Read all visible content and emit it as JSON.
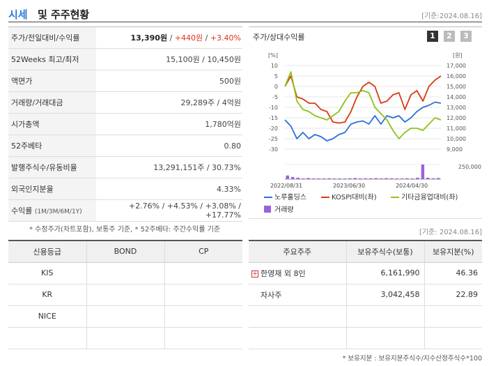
{
  "header": {
    "title_blue": "시세",
    "title_black": "및 주주현황",
    "date": "[기준:2024.08.16]"
  },
  "market": {
    "rows": [
      {
        "label": "주가/전일대비/수익률",
        "price": "13,390원",
        "change": "+440원",
        "rate": "+3.40%"
      },
      {
        "label": "52Weeks 최고/최저",
        "value": "15,100원 / 10,450원"
      },
      {
        "label": "액면가",
        "value": "500원"
      },
      {
        "label": "거래량/거래대금",
        "value": "29,289주 / 4억원"
      },
      {
        "label": "시가총액",
        "value": "1,780억원"
      },
      {
        "label": "52주베타",
        "value": "0.80"
      },
      {
        "label": "발행주식수/유동비율",
        "value": "13,291,151주 / 30.73%"
      },
      {
        "label": "외국인지분율",
        "value": "4.33%"
      },
      {
        "label": "수익률",
        "label_sub": "(1M/3M/6M/1Y)",
        "value": "+2.76% / +4.53% / +3.08% / +17.77%"
      }
    ],
    "note": "* 수정주가(차트포함), 보통주 기준, * 52주베타: 주간수익률 기준"
  },
  "chart_panel": {
    "title": "주가/상대수익률",
    "buttons": [
      "1",
      "2",
      "3"
    ]
  },
  "chart_data": {
    "type": "line",
    "title": "주가/상대수익률",
    "left_unit": "[%]",
    "right_unit": "[원]",
    "left_ticks": [
      "10",
      "5",
      "0",
      "-5",
      "-10",
      "-15",
      "-20",
      "-25",
      "-30"
    ],
    "right_ticks": [
      "17,000",
      "16,000",
      "15,000",
      "14,000",
      "13,000",
      "12,000",
      "11,000",
      "10,000",
      "9,000"
    ],
    "y_left_range": [
      -30,
      10
    ],
    "volume_tick": "250,000",
    "x_labels": [
      "2022/08/31",
      "2023/06/30",
      "2024/04/30"
    ],
    "series": [
      {
        "name": "노루홀딩스",
        "color": "#2a6fd6",
        "values": [
          -16,
          -19,
          -25,
          -22,
          -25,
          -23,
          -24,
          -26,
          -25,
          -23,
          -22,
          -18,
          -17,
          -16.5,
          -18,
          -14,
          -18,
          -14,
          -15,
          -14,
          -17,
          -15,
          -12,
          -10,
          -9,
          -7.5,
          -8
        ]
      },
      {
        "name": "KOSPI대비(좌)",
        "color": "#d83a14",
        "values": [
          0,
          5,
          -5,
          -6,
          -8,
          -8,
          -11,
          -12,
          -17,
          -17.5,
          -17,
          -12,
          -5,
          0,
          2,
          0,
          -8,
          -7,
          -4,
          -3,
          -11,
          -4,
          -2,
          -7,
          0,
          3,
          5
        ]
      },
      {
        "name": "기타금융업대비(좌)",
        "color": "#8ec21a",
        "values": [
          0,
          7,
          -7,
          -11,
          -12,
          -14,
          -15,
          -16,
          -14,
          -12,
          -7,
          -3,
          -3,
          -2,
          -3,
          -10,
          -13,
          -16,
          -21,
          -25,
          -22,
          -20,
          -20,
          -21,
          -18,
          -15,
          -16
        ]
      }
    ],
    "volume_name": "거래량",
    "volume_color": "#9b62d9",
    "volume_values": [
      0.25,
      0.15,
      0.1,
      0.05,
      0.08,
      0.04,
      0.05,
      0.05,
      0.06,
      0.04,
      0.05,
      0.04,
      0.06,
      0.08,
      0.05,
      0.06,
      0.06,
      0.07,
      0.05,
      0.07,
      0.06,
      0.05,
      0.04,
      0.06,
      0.05,
      0.1,
      1.0,
      0.1,
      0.06,
      0.08
    ]
  },
  "credit": {
    "headers": [
      "신용등급",
      "BOND",
      "CP"
    ],
    "rows": [
      [
        "KIS",
        "",
        ""
      ],
      [
        "KR",
        "",
        ""
      ],
      [
        "NICE",
        "",
        ""
      ],
      [
        "",
        "",
        ""
      ]
    ]
  },
  "shareholders": {
    "date": "[기준: 2024.08.16]",
    "headers": [
      "주요주주",
      "보유주식수(보통)",
      "보유지분(%)"
    ],
    "rows": [
      {
        "name": "한영재 외 8인",
        "shares": "6,161,990",
        "pct": "46.36",
        "expandable": true
      },
      {
        "name": "자사주",
        "shares": "3,042,458",
        "pct": "22.89",
        "expandable": false
      },
      {
        "name": "",
        "shares": "",
        "pct": "",
        "expandable": false
      },
      {
        "name": "",
        "shares": "",
        "pct": "",
        "expandable": false
      }
    ],
    "note": "* 보유지분 : 보유지분주식수/지수산정주식수*100"
  }
}
